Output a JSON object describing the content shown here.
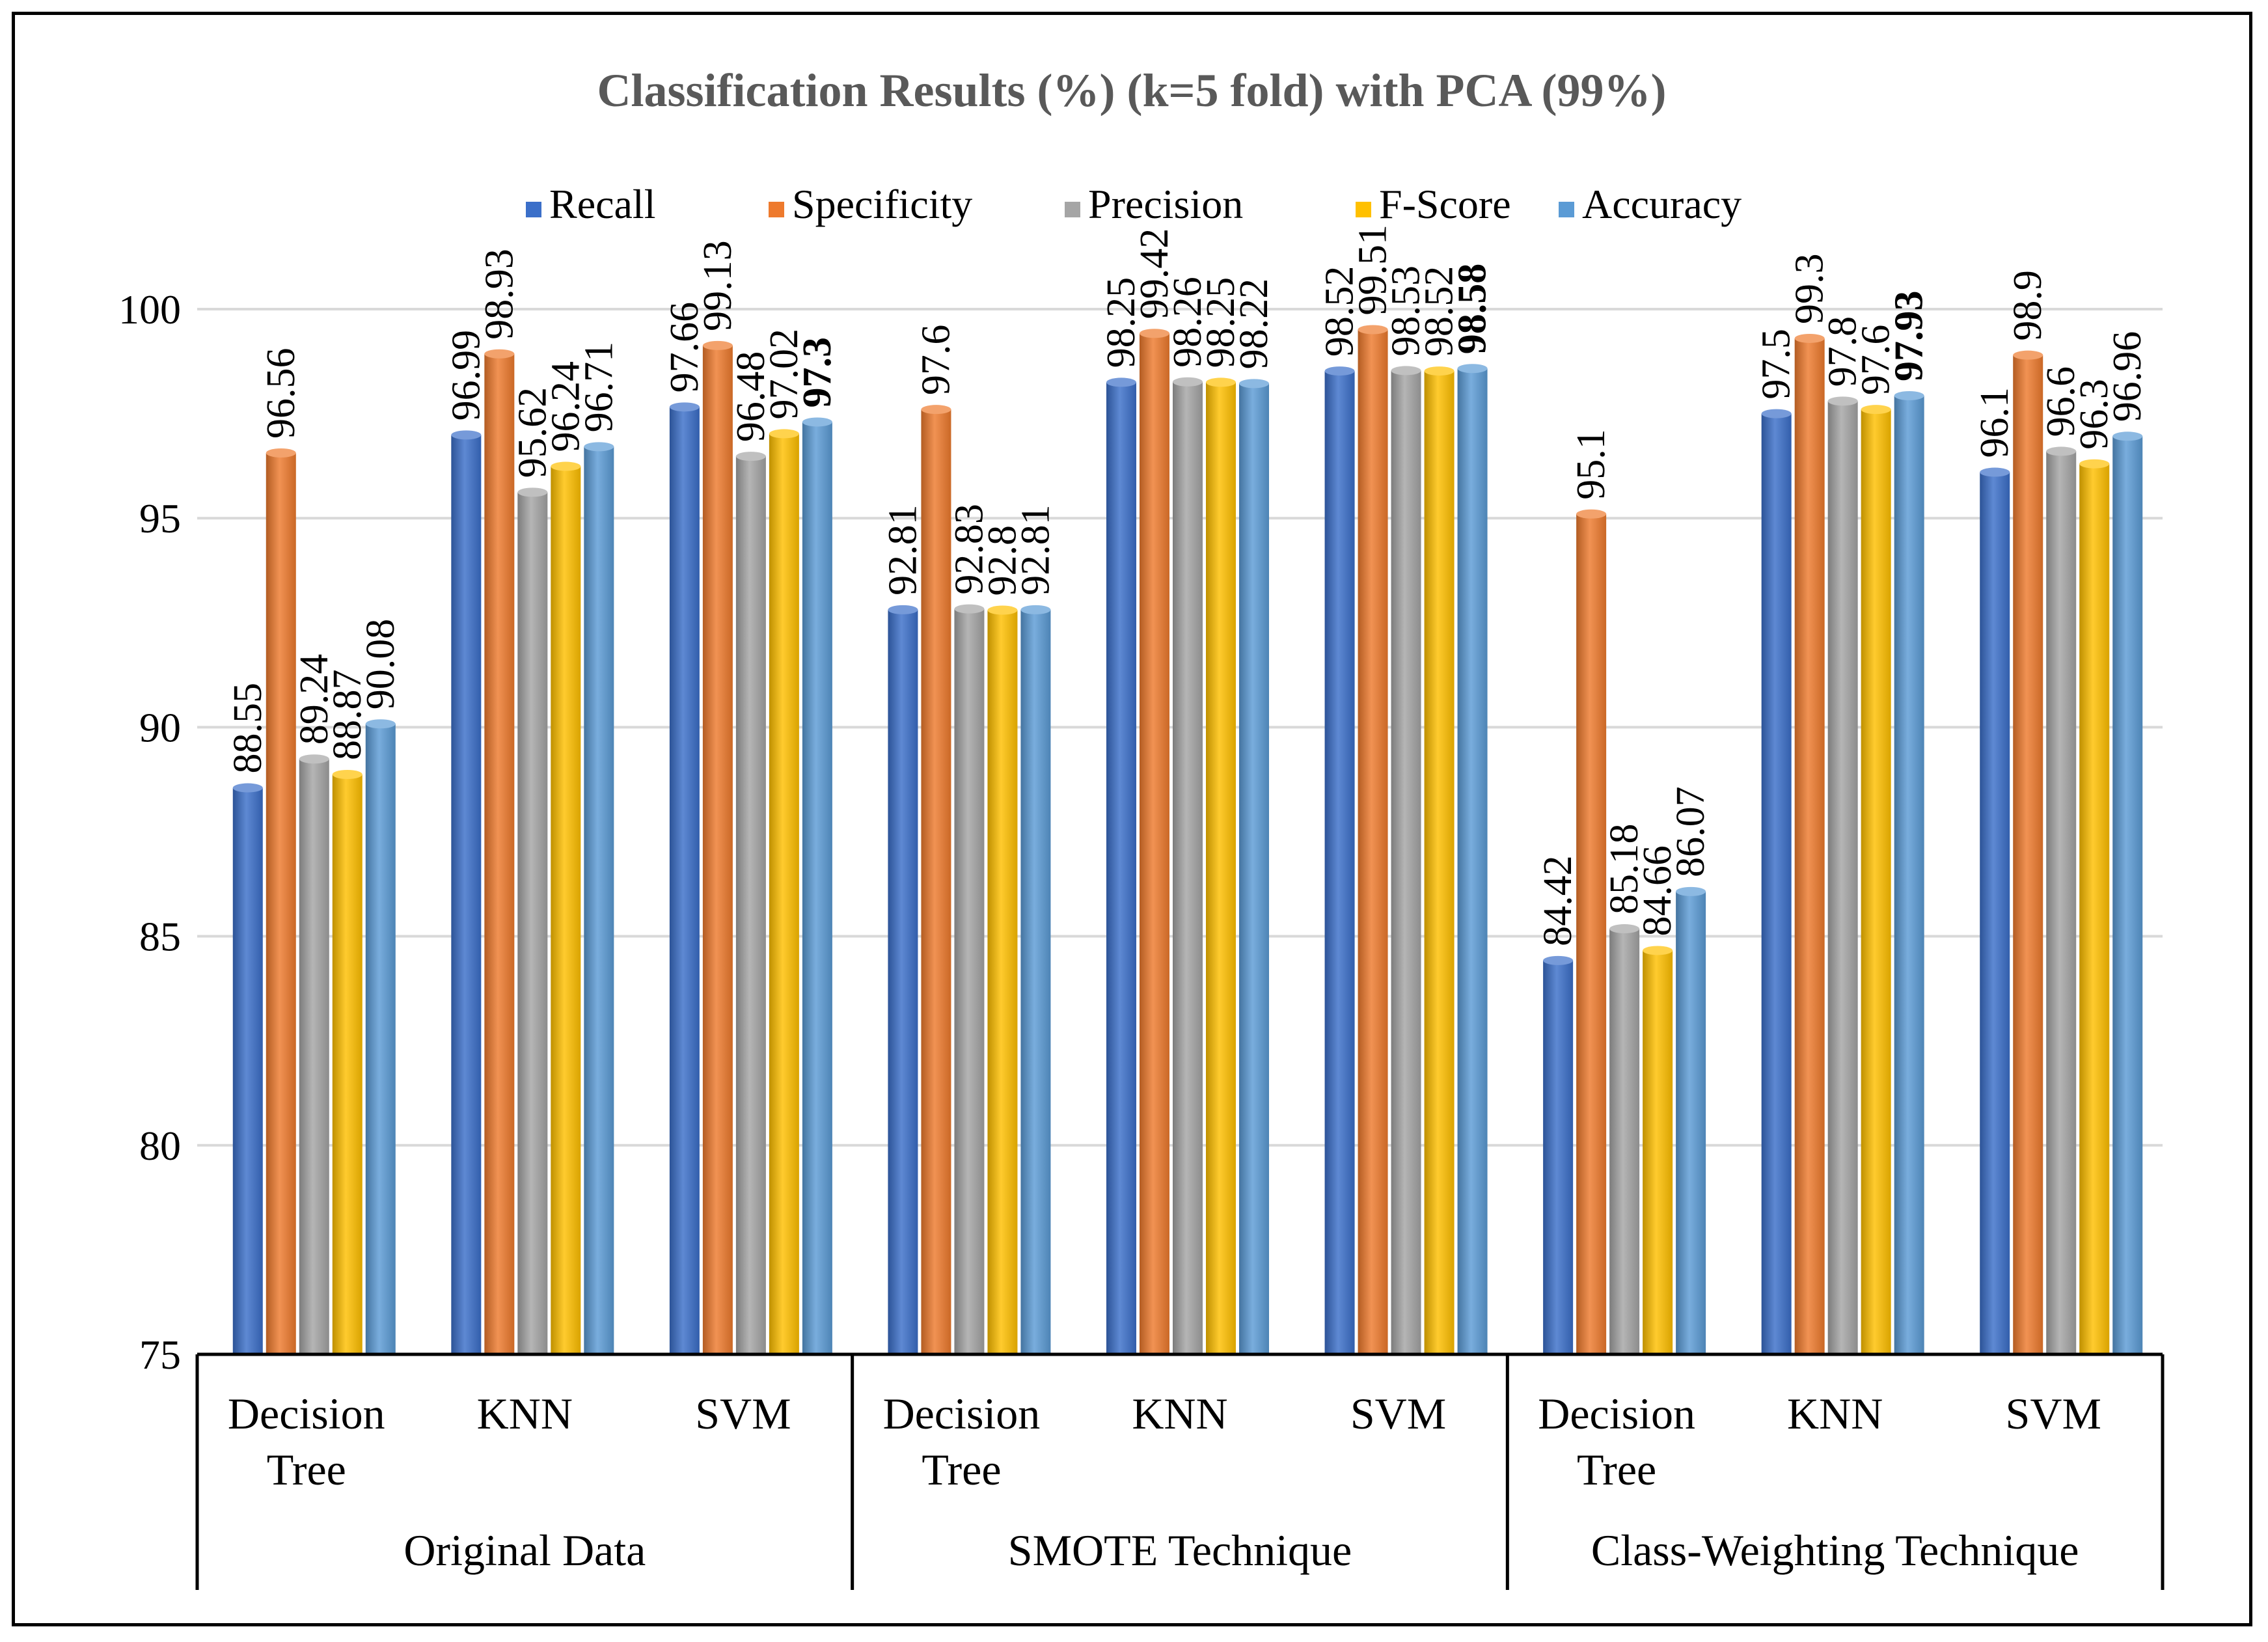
{
  "chart_data": {
    "type": "bar",
    "title": "Classification Results (%) (k=5 fold) with PCA (99%)",
    "xlabel": "",
    "ylabel": "",
    "ylim": [
      75,
      100
    ],
    "yticks": [
      75,
      80,
      85,
      90,
      95,
      100
    ],
    "grid": true,
    "legend_position": "top",
    "groups": [
      {
        "label": "Original Data",
        "categories": [
          "Decision Tree",
          "KNN",
          "SVM"
        ]
      },
      {
        "label": "SMOTE Technique",
        "categories": [
          "Decision Tree",
          "KNN",
          "SVM"
        ]
      },
      {
        "label": "Class-Weighting Technique",
        "categories": [
          "Decision Tree",
          "KNN",
          "SVM"
        ]
      }
    ],
    "categories": [
      [
        "Decision",
        "Tree"
      ],
      [
        "KNN"
      ],
      [
        "SVM"
      ],
      [
        "Decision",
        "Tree"
      ],
      [
        "KNN"
      ],
      [
        "SVM"
      ],
      [
        "Decision",
        "Tree"
      ],
      [
        "KNN"
      ],
      [
        "SVM"
      ]
    ],
    "series": [
      {
        "name": "Recall",
        "color": "#3B6FC9",
        "values": [
          88.55,
          96.99,
          97.66,
          92.81,
          98.25,
          98.52,
          84.42,
          97.5,
          96.1
        ],
        "labels": [
          "88.55",
          "96.99",
          "97.66",
          "92.81",
          "98.25",
          "98.52",
          "84.42",
          "97.5",
          "96.1"
        ]
      },
      {
        "name": "Specificity",
        "color": "#EE7A2D",
        "values": [
          96.56,
          98.93,
          99.13,
          97.6,
          99.42,
          99.51,
          95.1,
          99.3,
          98.9
        ],
        "labels": [
          "96.56",
          "98.93",
          "99.13",
          "97.6",
          "99.42",
          "99.51",
          "95.1",
          "99.3",
          "98.9"
        ]
      },
      {
        "name": "Precision",
        "color": "#A5A5A5",
        "values": [
          89.24,
          95.62,
          96.48,
          92.83,
          98.26,
          98.53,
          85.18,
          97.8,
          96.6
        ],
        "labels": [
          "89.24",
          "95.62",
          "96.48",
          "92.83",
          "98.26",
          "98.53",
          "85.18",
          "97.8",
          "96.6"
        ]
      },
      {
        "name": "F-Score",
        "color": "#FFC000",
        "values": [
          88.87,
          96.24,
          97.02,
          92.8,
          98.25,
          98.52,
          84.66,
          97.6,
          96.3
        ],
        "labels": [
          "88.87",
          "96.24",
          "97.02",
          "92.8",
          "98.25",
          "98.52",
          "84.66",
          "97.6",
          "96.3"
        ]
      },
      {
        "name": "Accuracy",
        "color": "#5B9BD5",
        "values": [
          90.08,
          96.71,
          97.3,
          92.81,
          98.22,
          98.58,
          86.07,
          97.93,
          96.96
        ],
        "labels": [
          "90.08",
          "96.71",
          "97.3",
          "92.81",
          "98.22",
          "98.58",
          "86.07",
          "97.93",
          "96.96"
        ]
      }
    ],
    "bold_labels": [
      {
        "series": 4,
        "index": 2
      },
      {
        "series": 4,
        "index": 5
      },
      {
        "series": 4,
        "index": 7
      }
    ]
  }
}
